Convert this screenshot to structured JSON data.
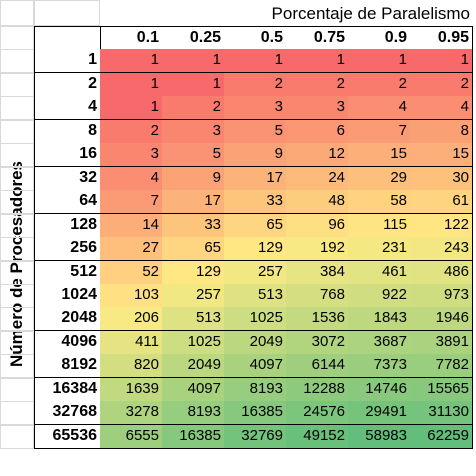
{
  "sheet": {
    "column_title": "Porcentaje de Paralelismo",
    "row_title": "Número de Procesadores",
    "columns": [
      "0.1",
      "0.25",
      "0.5",
      "0.75",
      "0.9",
      "0.95"
    ],
    "rows": [
      {
        "label": "1",
        "values": [
          "1",
          "1",
          "1",
          "1",
          "1",
          "1"
        ]
      },
      {
        "label": "2",
        "values": [
          "1",
          "1",
          "2",
          "2",
          "2",
          "2"
        ]
      },
      {
        "label": "4",
        "values": [
          "1",
          "2",
          "3",
          "3",
          "4",
          "4"
        ]
      },
      {
        "label": "8",
        "values": [
          "2",
          "3",
          "5",
          "6",
          "7",
          "8"
        ]
      },
      {
        "label": "16",
        "values": [
          "3",
          "5",
          "9",
          "12",
          "15",
          "15"
        ]
      },
      {
        "label": "32",
        "values": [
          "4",
          "9",
          "17",
          "24",
          "29",
          "30"
        ]
      },
      {
        "label": "64",
        "values": [
          "7",
          "17",
          "33",
          "48",
          "58",
          "61"
        ]
      },
      {
        "label": "128",
        "values": [
          "14",
          "33",
          "65",
          "96",
          "115",
          "122"
        ]
      },
      {
        "label": "256",
        "values": [
          "27",
          "65",
          "129",
          "192",
          "231",
          "243"
        ]
      },
      {
        "label": "512",
        "values": [
          "52",
          "129",
          "257",
          "384",
          "461",
          "486"
        ]
      },
      {
        "label": "1024",
        "values": [
          "103",
          "257",
          "513",
          "768",
          "922",
          "973"
        ]
      },
      {
        "label": "2048",
        "values": [
          "206",
          "513",
          "1025",
          "1536",
          "1843",
          "1946"
        ]
      },
      {
        "label": "4096",
        "values": [
          "411",
          "1025",
          "2049",
          "3072",
          "3687",
          "3891"
        ]
      },
      {
        "label": "8192",
        "values": [
          "820",
          "2049",
          "4097",
          "6144",
          "7373",
          "7782"
        ]
      },
      {
        "label": "16384",
        "values": [
          "1639",
          "4097",
          "8193",
          "12288",
          "14746",
          "15565"
        ]
      },
      {
        "label": "32768",
        "values": [
          "3278",
          "8193",
          "16385",
          "24576",
          "29491",
          "31130"
        ]
      },
      {
        "label": "65536",
        "values": [
          "6555",
          "16385",
          "32769",
          "49152",
          "58983",
          "62259"
        ]
      }
    ],
    "color_scale": {
      "low": "#f8696b",
      "mid": "#ffeb84",
      "high": "#63be7b"
    }
  }
}
